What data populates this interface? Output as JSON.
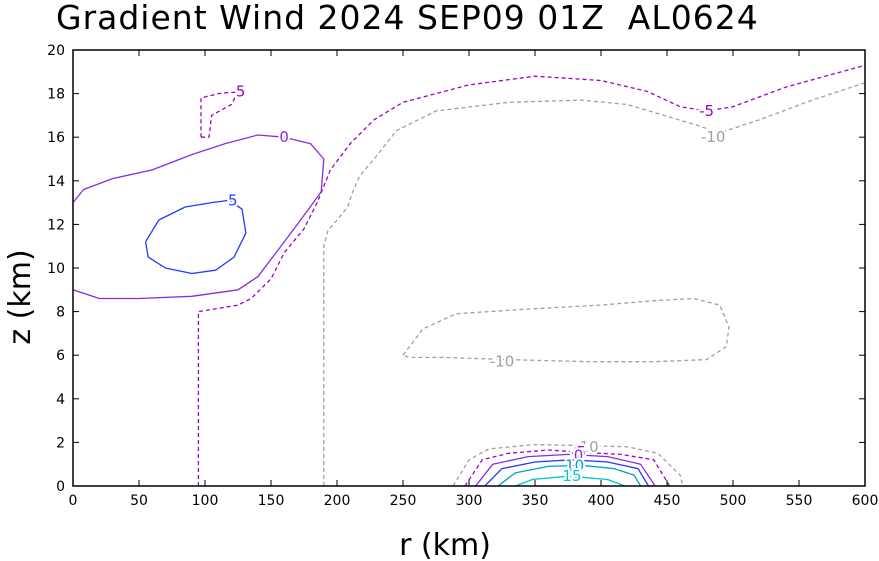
{
  "title": "Gradient Wind 2024 SEP09 01Z  AL0624",
  "chart_data": {
    "type": "contour",
    "title": "Gradient Wind 2024 SEP09 01Z  AL0624",
    "xlabel": "r (km)",
    "ylabel": "z (km)",
    "xlim": [
      0,
      600
    ],
    "ylim": [
      0,
      20
    ],
    "xticks": [
      0,
      50,
      100,
      150,
      200,
      250,
      300,
      350,
      400,
      450,
      500,
      550,
      600
    ],
    "yticks": [
      0,
      2,
      4,
      6,
      8,
      10,
      12,
      14,
      16,
      18,
      20
    ],
    "colors": {
      "neg10": "#a0a0a0",
      "neg5": "#a000c8",
      "zero": "#8a2be2",
      "pos5": "#1e3cff",
      "pos10": "#00a0c8",
      "pos15": "#00c8c8"
    },
    "contours": [
      {
        "level": -10,
        "label": "-10",
        "style": "dashed",
        "color": "#a0a0a0",
        "points": [
          [
            190,
            0
          ],
          [
            190,
            11
          ],
          [
            193,
            11.7
          ],
          [
            200,
            12.2
          ],
          [
            208,
            12.8
          ],
          [
            212,
            13.5
          ],
          [
            217,
            14.2
          ],
          [
            228,
            15
          ],
          [
            245,
            16.3
          ],
          [
            275,
            17.2
          ],
          [
            330,
            17.6
          ],
          [
            385,
            17.7
          ],
          [
            420,
            17.5
          ],
          [
            470,
            16.6
          ],
          [
            490,
            16.2
          ],
          [
            520,
            16.8
          ],
          [
            560,
            17.7
          ],
          [
            600,
            18.5
          ]
        ],
        "label_pos": [
          485,
          16.0
        ]
      },
      {
        "level": -10,
        "label": "-10",
        "style": "dashed",
        "color": "#a0a0a0",
        "points": [
          [
            250,
            6
          ],
          [
            265,
            7.2
          ],
          [
            290,
            7.9
          ],
          [
            340,
            8.1
          ],
          [
            400,
            8.3
          ],
          [
            440,
            8.5
          ],
          [
            470,
            8.6
          ],
          [
            490,
            8.3
          ],
          [
            497,
            7.3
          ],
          [
            495,
            6.4
          ],
          [
            480,
            5.8
          ],
          [
            440,
            5.7
          ],
          [
            390,
            5.7
          ],
          [
            330,
            5.8
          ],
          [
            280,
            5.9
          ],
          [
            255,
            5.9
          ],
          [
            250,
            6
          ]
        ],
        "label_pos": [
          325,
          5.7
        ]
      },
      {
        "level": -10,
        "label": "-10",
        "style": "dashed",
        "color": "#a0a0a0",
        "points": [
          [
            288,
            0
          ],
          [
            300,
            1.2
          ],
          [
            315,
            1.7
          ],
          [
            350,
            1.9
          ],
          [
            390,
            1.85
          ],
          [
            420,
            1.8
          ],
          [
            443,
            1.5
          ],
          [
            460,
            0.5
          ],
          [
            462,
            0
          ]
        ],
        "label_pos": [
          389,
          1.8
        ]
      },
      {
        "level": -5,
        "label": "-5",
        "style": "dashed",
        "color": "#a000c8",
        "points": [
          [
            95,
            0
          ],
          [
            95,
            8
          ],
          [
            125,
            8.3
          ],
          [
            135,
            8.6
          ],
          [
            150,
            9.5
          ],
          [
            160,
            10.7
          ],
          [
            175,
            11.8
          ],
          [
            185,
            13
          ],
          [
            195,
            14.5
          ],
          [
            210,
            15.7
          ],
          [
            228,
            16.8
          ],
          [
            250,
            17.6
          ],
          [
            300,
            18.4
          ],
          [
            350,
            18.8
          ],
          [
            400,
            18.6
          ],
          [
            435,
            18.1
          ],
          [
            460,
            17.4
          ],
          [
            480,
            17.2
          ],
          [
            500,
            17.4
          ],
          [
            540,
            18.3
          ],
          [
            600,
            19.3
          ]
        ],
        "label_pos": [
          480,
          17.2
        ]
      },
      {
        "level": -5,
        "label": "-5",
        "style": "dashed",
        "color": "#a000c8",
        "points": [
          [
            97,
            16
          ],
          [
            97,
            17.8
          ],
          [
            110,
            18
          ],
          [
            125,
            18.1
          ],
          [
            120,
            17.5
          ],
          [
            105,
            17
          ],
          [
            103,
            16
          ],
          [
            97,
            16
          ]
        ],
        "label_pos": [
          125,
          18.1
        ]
      },
      {
        "level": -5,
        "label": "-5",
        "style": "dashed",
        "color": "#a000c8",
        "points": [
          [
            297,
            0
          ],
          [
            310,
            1.2
          ],
          [
            330,
            1.5
          ],
          [
            360,
            1.65
          ],
          [
            385,
            1.55
          ],
          [
            415,
            1.45
          ],
          [
            440,
            1.2
          ],
          [
            452,
            0
          ]
        ],
        "label_pos": [
          383,
          1.55
        ]
      },
      {
        "level": 0,
        "label": "0",
        "style": "solid",
        "color": "#8a2be2",
        "points": [
          [
            0,
            13
          ],
          [
            8,
            13.6
          ],
          [
            30,
            14.1
          ],
          [
            60,
            14.5
          ],
          [
            90,
            15.2
          ],
          [
            115,
            15.7
          ],
          [
            140,
            16.1
          ],
          [
            160,
            16
          ],
          [
            180,
            15.7
          ],
          [
            190,
            15.0
          ],
          [
            188,
            13.5
          ],
          [
            170,
            12
          ],
          [
            155,
            10.8
          ],
          [
            140,
            9.6
          ],
          [
            125,
            9
          ],
          [
            90,
            8.7
          ],
          [
            50,
            8.6
          ],
          [
            20,
            8.6
          ],
          [
            0,
            9
          ]
        ],
        "label_pos": [
          160,
          16.0
        ]
      },
      {
        "level": 0,
        "label": "0",
        "style": "solid",
        "color": "#8a2be2",
        "points": [
          [
            305,
            0
          ],
          [
            318,
            1.0
          ],
          [
            345,
            1.35
          ],
          [
            375,
            1.45
          ],
          [
            405,
            1.35
          ],
          [
            430,
            1.0
          ],
          [
            441,
            0
          ]
        ],
        "label_pos": [
          383,
          1.4
        ]
      },
      {
        "level": 5,
        "label": "5",
        "style": "solid",
        "color": "#1e3cff",
        "points": [
          [
            55,
            11.2
          ],
          [
            65,
            12.2
          ],
          [
            85,
            12.8
          ],
          [
            105,
            13
          ],
          [
            118,
            13.1
          ],
          [
            128,
            12.7
          ],
          [
            131,
            11.6
          ],
          [
            122,
            10.5
          ],
          [
            108,
            9.9
          ],
          [
            90,
            9.75
          ],
          [
            70,
            10
          ],
          [
            57,
            10.5
          ],
          [
            55,
            11.2
          ]
        ],
        "label_pos": [
          121,
          13.1
        ]
      },
      {
        "level": 5,
        "label": "5",
        "style": "solid",
        "color": "#1e3cff",
        "points": [
          [
            312,
            0
          ],
          [
            325,
            0.8
          ],
          [
            350,
            1.1
          ],
          [
            378,
            1.2
          ],
          [
            405,
            1.1
          ],
          [
            428,
            0.8
          ],
          [
            436,
            0
          ]
        ],
        "label_pos": null
      },
      {
        "level": 10,
        "label": "10",
        "style": "solid",
        "color": "#00a0c8",
        "points": [
          [
            322,
            0
          ],
          [
            335,
            0.6
          ],
          [
            360,
            0.9
          ],
          [
            385,
            0.95
          ],
          [
            410,
            0.8
          ],
          [
            425,
            0.5
          ],
          [
            430,
            0
          ]
        ],
        "label_pos": [
          380,
          0.95
        ]
      },
      {
        "level": 15,
        "label": "15",
        "style": "solid",
        "color": "#00c8c8",
        "points": [
          [
            335,
            0
          ],
          [
            348,
            0.3
          ],
          [
            375,
            0.45
          ],
          [
            405,
            0.3
          ],
          [
            418,
            0
          ]
        ],
        "label_pos": [
          378,
          0.45
        ]
      }
    ]
  }
}
